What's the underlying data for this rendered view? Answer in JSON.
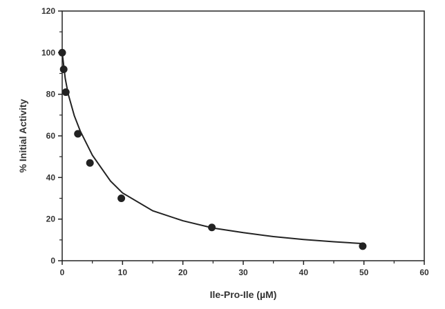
{
  "chart_data": {
    "type": "scatter",
    "title": "",
    "xlabel": "Ile-Pro-Ile (µM)",
    "ylabel": "% Initial Activity",
    "xlim": [
      0,
      60
    ],
    "ylim": [
      0,
      120
    ],
    "x_ticks": [
      0,
      10,
      20,
      30,
      40,
      50,
      60
    ],
    "y_ticks": [
      0,
      20,
      40,
      60,
      80,
      100,
      120
    ],
    "grid": false,
    "legend": "none",
    "series": [
      {
        "x": [
          0,
          0.25,
          0.6,
          2.6,
          4.6,
          9.8,
          24.8,
          49.8
        ],
        "y": [
          100,
          92,
          81,
          61,
          47,
          30,
          16,
          7
        ],
        "marker": "filled-circle",
        "color": "#222222"
      }
    ],
    "fit_curve": {
      "type": "inhibition",
      "x": [
        0,
        0.5,
        1,
        2,
        3,
        5,
        8,
        10,
        15,
        20,
        25,
        30,
        35,
        40,
        45,
        50
      ],
      "y": [
        100,
        87.6,
        80.1,
        69.7,
        62.3,
        50.7,
        38.3,
        32.6,
        24.0,
        19.2,
        15.7,
        13.5,
        11.6,
        10.2,
        9.1,
        8.2
      ],
      "color": "#222222"
    }
  }
}
